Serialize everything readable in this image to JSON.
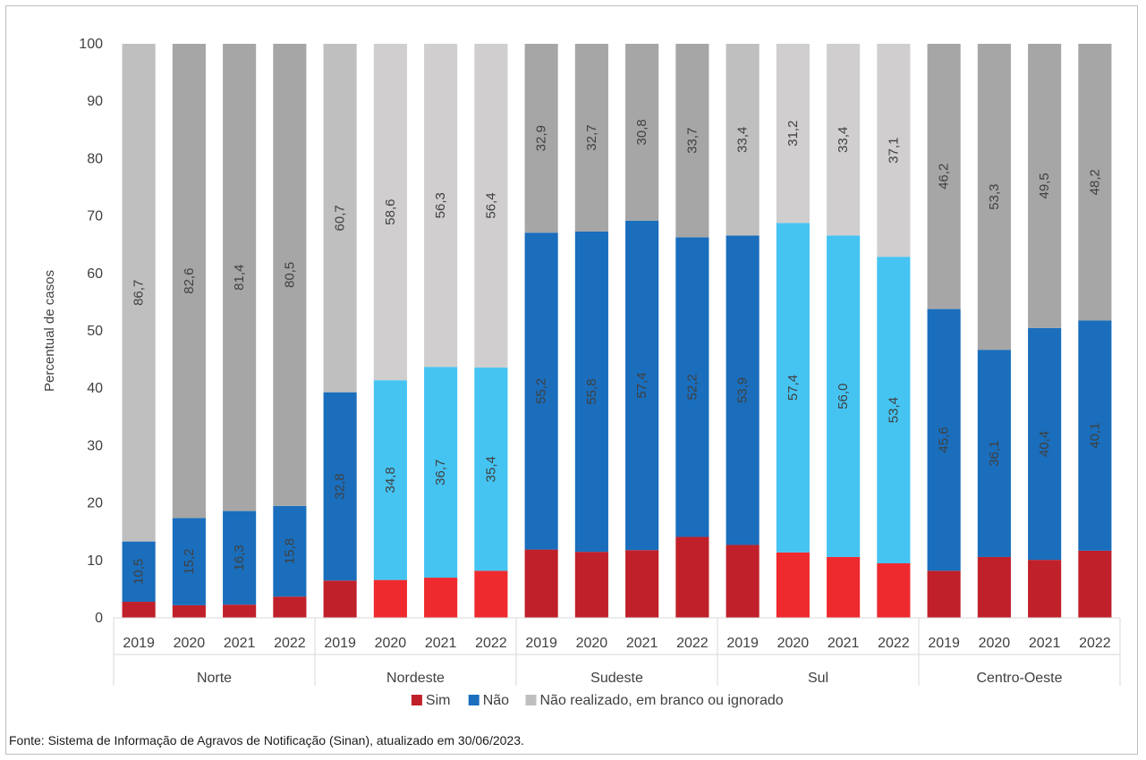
{
  "chart_data": {
    "type": "bar",
    "stacked": true,
    "ylabel": "Percentual de casos",
    "ylim": [
      0,
      100
    ],
    "yticks": [
      0,
      10,
      20,
      30,
      40,
      50,
      60,
      70,
      80,
      90,
      100
    ],
    "grid": false,
    "legend_position": "bottom",
    "groups": [
      {
        "name": "Norte",
        "bars": [
          {
            "year": "2019",
            "sim": 2.8,
            "nao": 10.5,
            "nr": 86.7
          },
          {
            "year": "2020",
            "sim": 2.2,
            "nao": 15.2,
            "nr": 82.6
          },
          {
            "year": "2021",
            "sim": 2.3,
            "nao": 16.3,
            "nr": 81.4
          },
          {
            "year": "2022",
            "sim": 3.7,
            "nao": 15.8,
            "nr": 80.5
          }
        ]
      },
      {
        "name": "Nordeste",
        "bars": [
          {
            "year": "2019",
            "sim": 6.5,
            "nao": 32.8,
            "nr": 60.7
          },
          {
            "year": "2020",
            "sim": 6.6,
            "nao": 34.8,
            "nr": 58.6
          },
          {
            "year": "2021",
            "sim": 7.0,
            "nao": 36.7,
            "nr": 56.3
          },
          {
            "year": "2022",
            "sim": 8.2,
            "nao": 35.4,
            "nr": 56.4
          }
        ]
      },
      {
        "name": "Sudeste",
        "bars": [
          {
            "year": "2019",
            "sim": 11.9,
            "nao": 55.2,
            "nr": 32.9
          },
          {
            "year": "2020",
            "sim": 11.5,
            "nao": 55.8,
            "nr": 32.7
          },
          {
            "year": "2021",
            "sim": 11.8,
            "nao": 57.4,
            "nr": 30.8
          },
          {
            "year": "2022",
            "sim": 14.1,
            "nao": 52.2,
            "nr": 33.7
          }
        ]
      },
      {
        "name": "Sul",
        "bars": [
          {
            "year": "2019",
            "sim": 12.7,
            "nao": 53.9,
            "nr": 33.4
          },
          {
            "year": "2020",
            "sim": 11.4,
            "nao": 57.4,
            "nr": 31.2
          },
          {
            "year": "2021",
            "sim": 10.6,
            "nao": 56.0,
            "nr": 33.4
          },
          {
            "year": "2022",
            "sim": 9.5,
            "nao": 53.4,
            "nr": 37.1
          }
        ]
      },
      {
        "name": "Centro-Oeste",
        "bars": [
          {
            "year": "2019",
            "sim": 8.2,
            "nao": 45.6,
            "nr": 46.2
          },
          {
            "year": "2020",
            "sim": 10.6,
            "nao": 36.1,
            "nr": 53.3
          },
          {
            "year": "2021",
            "sim": 10.1,
            "nao": 40.4,
            "nr": 49.5
          },
          {
            "year": "2022",
            "sim": 11.7,
            "nao": 40.1,
            "nr": 48.2
          }
        ]
      }
    ],
    "series": [
      {
        "key": "sim",
        "name": "Sim",
        "color": "#c0202a"
      },
      {
        "key": "nao",
        "name": "Não",
        "color": "#1a6ebc"
      },
      {
        "key": "nr",
        "name": "Não realizado, em branco ou ignorado",
        "color": "#bfbfbf"
      }
    ],
    "group_palettes": {
      "Norte": {
        "sim": "#c0202a",
        "nao": "#1a6ebc",
        "nr": "#a6a6a6"
      },
      "Nordeste": {
        "sim": "#ee2a2e",
        "nao": "#45c4f2",
        "nr": "#d0cece"
      },
      "Sudeste": {
        "sim": "#c0202a",
        "nao": "#1a6ebc",
        "nr": "#a6a6a6"
      },
      "Sul": {
        "sim": "#ee2a2e",
        "nao": "#45c4f2",
        "nr": "#d0cece"
      },
      "Centro-Oeste": {
        "sim": "#c0202a",
        "nao": "#1a6ebc",
        "nr": "#a6a6a6"
      }
    },
    "first_bar_palette": {
      "Norte": {
        "nr": "#bfbfbf"
      },
      "Nordeste": {
        "sim": "#c0202a",
        "nao": "#1a6ebc",
        "nr": "#bfbfbf"
      },
      "Sul": {
        "sim": "#c0202a",
        "nao": "#1a6ebc",
        "nr": "#bfbfbf"
      }
    },
    "first_bar_nr_color": "#bfbfbf"
  },
  "source_text": "Fonte: Sistema de Informação de Agravos de Notificação (Sinan), atualizado em 30/06/2023."
}
